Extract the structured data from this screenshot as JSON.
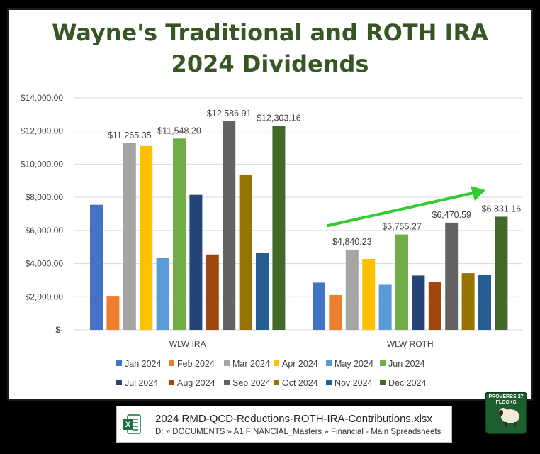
{
  "chart_data": {
    "type": "bar",
    "title_line1": "Wayne's Traditional and ROTH IRA",
    "title_line2": "2024 Dividends",
    "categories": [
      "WLW IRA",
      "WLW ROTH"
    ],
    "ylim": [
      0,
      14000
    ],
    "yticks": [
      "$-",
      "$2,000.00",
      "$4,000.00",
      "$6,000.00",
      "$8,000.00",
      "$10,000.00",
      "$12,000.00",
      "$14,000.00"
    ],
    "grid": true,
    "legend_position": "bottom",
    "series": [
      {
        "name": "Jan 2024",
        "color": "#4472C4",
        "values": [
          7550,
          2850
        ]
      },
      {
        "name": "Feb 2024",
        "color": "#ED7D31",
        "values": [
          2050,
          2100
        ]
      },
      {
        "name": "Mar 2024",
        "color": "#A5A5A5",
        "values": [
          11265.35,
          4840.23
        ],
        "labels": [
          "$11,265.35",
          "$4,840.23"
        ]
      },
      {
        "name": "Apr 2024",
        "color": "#FFC000",
        "values": [
          11100,
          4280
        ]
      },
      {
        "name": "May 2024",
        "color": "#5B9BD5",
        "values": [
          4350,
          2720
        ]
      },
      {
        "name": "Jun 2024",
        "color": "#70AD47",
        "values": [
          11548.2,
          5755.27
        ],
        "labels": [
          "$11,548.20",
          "$5,755.27"
        ]
      },
      {
        "name": "Jul 2024",
        "color": "#264478",
        "values": [
          8150,
          3280
        ]
      },
      {
        "name": "Aug 2024",
        "color": "#9E480E",
        "values": [
          4550,
          2880
        ]
      },
      {
        "name": "Sep 2024",
        "color": "#636363",
        "values": [
          12586.91,
          6470.59
        ],
        "labels": [
          "$12,586.91",
          "$6,470.59"
        ]
      },
      {
        "name": "Oct 2024",
        "color": "#997300",
        "values": [
          9380,
          3420
        ]
      },
      {
        "name": "Nov 2024",
        "color": "#255E91",
        "values": [
          4650,
          3320
        ]
      },
      {
        "name": "Dec 2024",
        "color": "#43682B",
        "values": [
          12303.16,
          6831.16
        ],
        "labels": [
          "$12,303.16",
          "$6,831.16"
        ]
      }
    ],
    "annotation": {
      "type": "arrow",
      "color": "#33CC33",
      "description": "upward trend arrow over WLW ROTH"
    }
  },
  "footer": {
    "file_name": "2024 RMD-QCD-Reductions-ROTH-IRA-Contributions.xlsx",
    "file_path": "D: » DOCUMENTS » A1 FINANCIAL_Masters » Financial - Main Spreadsheets",
    "icon": "excel-icon"
  },
  "logo": {
    "text": "PROVERBS 27 FLOCKS",
    "icon": "sheep-icon"
  }
}
